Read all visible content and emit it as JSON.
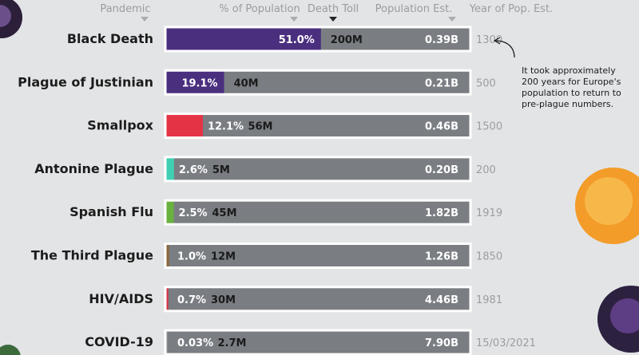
{
  "headers": {
    "pandemic": "Pandemic",
    "percent": "% of Population",
    "death_toll": "Death Toll",
    "pop_est": "Population Est.",
    "year": "Year of Pop. Est."
  },
  "annotation": {
    "lines": [
      "It took approximately",
      "200 years for Europe's",
      "population to return to",
      "pre-plague numbers."
    ]
  },
  "chart_data": {
    "type": "bar",
    "sorted_by": "Death Toll",
    "categories": [
      "Black Death",
      "Plague of Justinian",
      "Smallpox",
      "Antonine Plague",
      "Spanish Flu",
      "The Third Plague",
      "HIV/AIDS",
      "COVID-19"
    ],
    "percent_of_population": [
      51.0,
      19.1,
      12.1,
      2.6,
      2.5,
      1.0,
      0.7,
      0.03
    ],
    "percent_labels": [
      "51.0%",
      "19.1%",
      "12.1%",
      "2.6%",
      "2.5%",
      "1.0%",
      "0.7%",
      "0.03%"
    ],
    "death_toll_labels": [
      "200M",
      "40M",
      "56M",
      "5M",
      "45M",
      "12M",
      "30M",
      "2.7M"
    ],
    "population_est_labels": [
      "0.39B",
      "0.21B",
      "0.46B",
      "0.20B",
      "1.82B",
      "1.26B",
      "4.46B",
      "7.90B"
    ],
    "year_of_pop_est": [
      "1300",
      "500",
      "1500",
      "200",
      "1919",
      "1850",
      "1981",
      "15/03/2021"
    ],
    "colors": [
      "#4b2f7f",
      "#4b2f7f",
      "#e53346",
      "#3fcfb2",
      "#6ab23e",
      "#8b6a3c",
      "#d93444",
      "#8a8e93"
    ],
    "percent_text_colors": [
      "#ffffff",
      "#ffffff",
      "#ffffff",
      "#ffffff",
      "#ffffff",
      "#ffffff",
      "#ffffff",
      "#ffffff"
    ],
    "xlim": [
      0,
      100
    ]
  }
}
